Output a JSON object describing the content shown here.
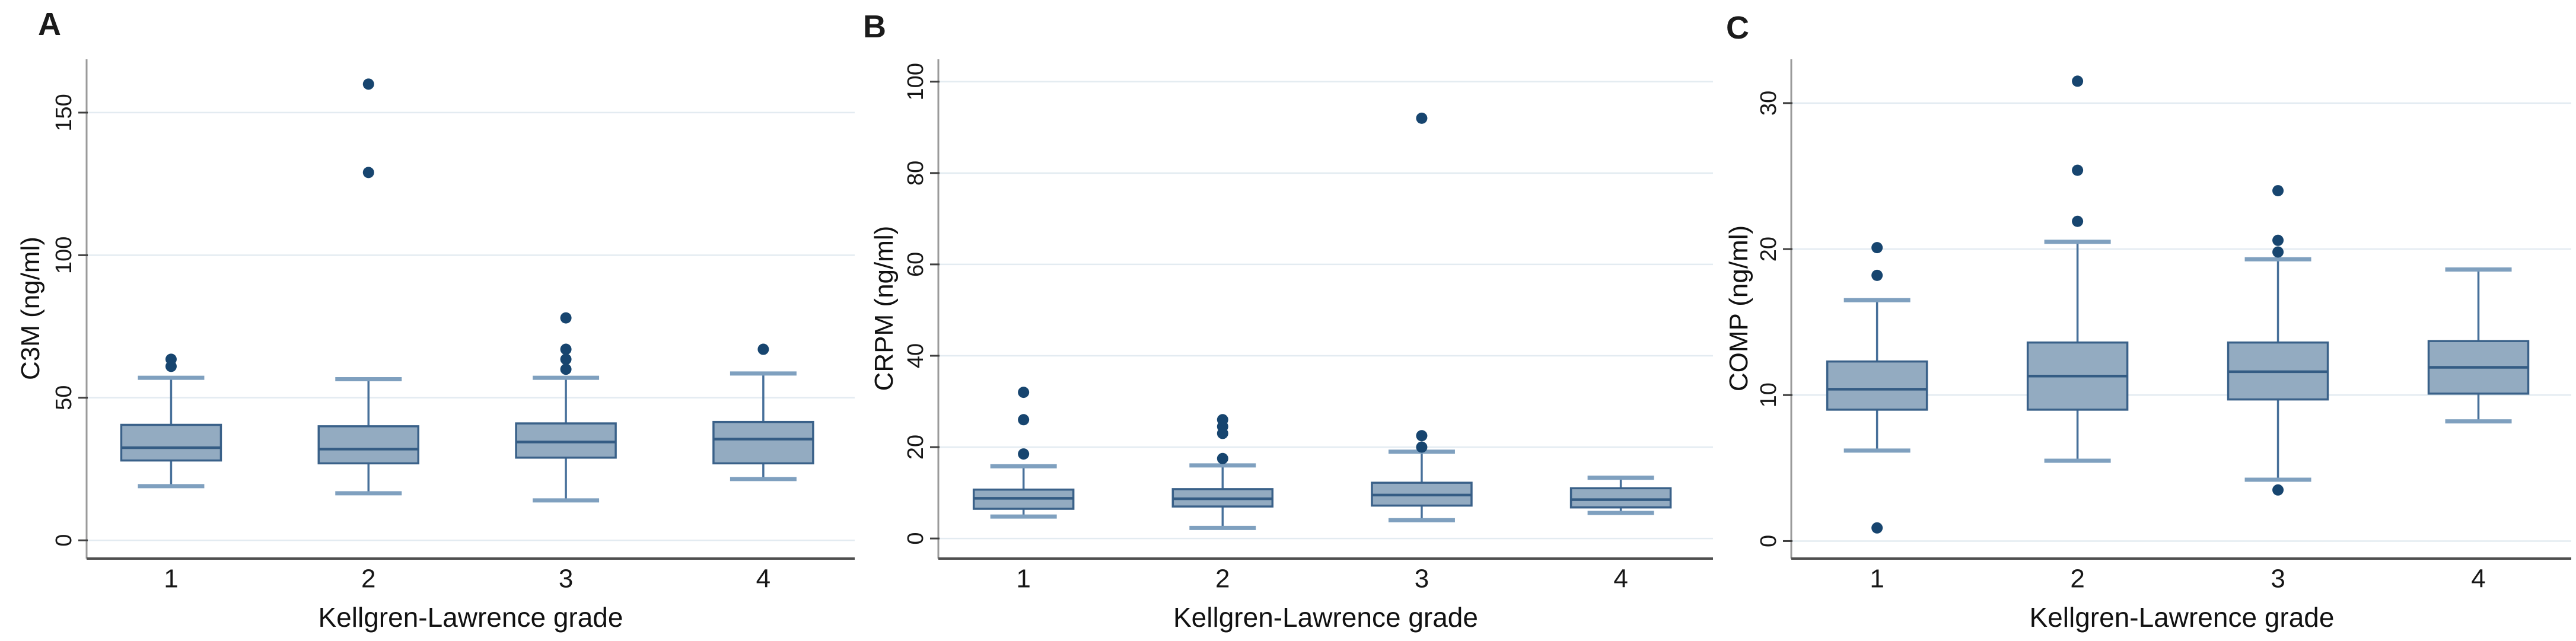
{
  "chart_data": [
    {
      "type": "box",
      "letter": "A",
      "ylabel": "C3M (ng/ml)",
      "xlabel": "Kellgren-Lawrence grade",
      "categories": [
        "1",
        "2",
        "3",
        "4"
      ],
      "yticks": [
        0,
        50,
        100,
        150
      ],
      "ylim": [
        -6.4,
        168.7
      ],
      "grid": true,
      "boxes": [
        {
          "category": "1",
          "whisker_low": 19,
          "q1": 28,
          "median": 32.5,
          "q3": 40.5,
          "whisker_high": 57,
          "outliers": [
            61,
            63.5
          ]
        },
        {
          "category": "2",
          "whisker_low": 16.5,
          "q1": 27,
          "median": 32,
          "q3": 40,
          "whisker_high": 56.5,
          "outliers": [
            129,
            160
          ]
        },
        {
          "category": "3",
          "whisker_low": 14,
          "q1": 29,
          "median": 34.5,
          "q3": 41,
          "whisker_high": 57,
          "outliers": [
            60,
            63.5,
            67,
            78
          ]
        },
        {
          "category": "4",
          "whisker_low": 21.5,
          "q1": 27,
          "median": 35.5,
          "q3": 41.5,
          "whisker_high": 58.5,
          "outliers": [
            67
          ]
        }
      ]
    },
    {
      "type": "box",
      "letter": "B",
      "ylabel": "CRPM (ng/ml)",
      "xlabel": "Kellgren-Lawrence grade",
      "categories": [
        "1",
        "2",
        "3",
        "4"
      ],
      "yticks": [
        0,
        20,
        40,
        60,
        80,
        100
      ],
      "ylim": [
        -4.4,
        104.9
      ],
      "grid": true,
      "boxes": [
        {
          "category": "1",
          "whisker_low": 4.8,
          "q1": 6.5,
          "median": 8.8,
          "q3": 10.7,
          "whisker_high": 15.8,
          "outliers": [
            18.5,
            26,
            32
          ]
        },
        {
          "category": "2",
          "whisker_low": 2.3,
          "q1": 7,
          "median": 8.7,
          "q3": 10.8,
          "whisker_high": 16,
          "outliers": [
            17.5,
            23,
            24.5,
            26
          ]
        },
        {
          "category": "3",
          "whisker_low": 4,
          "q1": 7.2,
          "median": 9.5,
          "q3": 12.2,
          "whisker_high": 19,
          "outliers": [
            20,
            22.5,
            92
          ]
        },
        {
          "category": "4",
          "whisker_low": 5.6,
          "q1": 6.8,
          "median": 8.5,
          "q3": 11,
          "whisker_high": 13.3,
          "outliers": []
        }
      ]
    },
    {
      "type": "box",
      "letter": "C",
      "ylabel": "COMP (ng/ml)",
      "xlabel": "Kellgren-Lawrence grade",
      "categories": [
        "1",
        "2",
        "3",
        "4"
      ],
      "yticks": [
        0,
        10,
        20,
        30
      ],
      "ylim": [
        -1.2,
        33.0
      ],
      "grid": true,
      "boxes": [
        {
          "category": "1",
          "whisker_low": 6.2,
          "q1": 9,
          "median": 10.4,
          "q3": 12.3,
          "whisker_high": 16.5,
          "outliers": [
            0.9,
            18.2,
            20.1
          ]
        },
        {
          "category": "2",
          "whisker_low": 5.5,
          "q1": 9,
          "median": 11.3,
          "q3": 13.6,
          "whisker_high": 20.5,
          "outliers": [
            21.9,
            25.4,
            31.5
          ]
        },
        {
          "category": "3",
          "whisker_low": 4.2,
          "q1": 9.7,
          "median": 11.6,
          "q3": 13.6,
          "whisker_high": 19.3,
          "outliers": [
            3.5,
            19.8,
            20.6,
            24
          ]
        },
        {
          "category": "4",
          "whisker_low": 8.2,
          "q1": 10.1,
          "median": 11.9,
          "q3": 13.7,
          "whisker_high": 18.6,
          "outliers": []
        }
      ]
    }
  ],
  "styles": {
    "box_fill": "#93abc1",
    "box_stroke": "#3a6189",
    "median_color": "#345c84",
    "whisker_color": "#47709a",
    "cap_color": "#7fa0bf",
    "outlier_color": "#17456f",
    "gridline_color": "#e3ebf1",
    "y_axis_color": "#9a9a9a",
    "baseline_color": "#4f4f4f",
    "tick_color": "#3f3f3f",
    "text_color": "#171717"
  }
}
